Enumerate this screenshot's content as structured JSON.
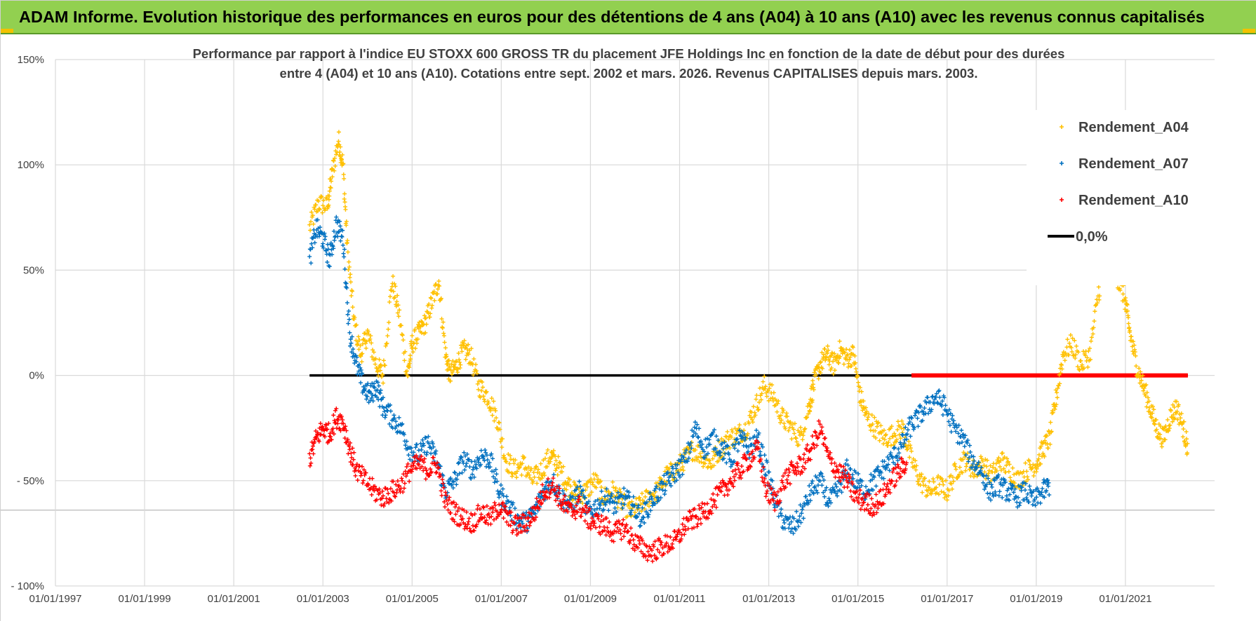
{
  "banner": {
    "title": "ADAM Informe. Evolution historique des performances en euros pour des détentions de 4 ans (A04) à 10 ans (A10) avec les revenus connus capitalisés"
  },
  "colors": {
    "banner_bg": "#92d050",
    "a04": "#ffc000",
    "a07": "#0070c0",
    "a10": "#ff0000",
    "zero": "#000000",
    "grid": "#d9d9d9",
    "text": "#404040"
  },
  "chart_data": {
    "type": "scatter",
    "title_lines": [
      "Performance par rapport à l'indice EU STOXX 600 GROSS TR  du placement JFE Holdings Inc en fonction de la date de début pour des durées",
      "entre 4 (A04) et 10 ans (A10). Cotations entre sept. 2002 et mars. 2026. Revenus CAPITALISES depuis mars. 2003."
    ],
    "xlabel": "",
    "ylabel": "",
    "x_range": [
      1997.0,
      2023.0
    ],
    "ylim": [
      -100,
      150
    ],
    "y_ticks": [
      {
        "value": 150,
        "label": "150%"
      },
      {
        "value": 100,
        "label": "100%"
      },
      {
        "value": 50,
        "label": "50%"
      },
      {
        "value": 0,
        "label": "0%"
      },
      {
        "value": -50,
        "label": "- 50%"
      },
      {
        "value": -100,
        "label": "- 100%"
      }
    ],
    "x_ticks": [
      {
        "value": 1997,
        "label": "01/01/1997"
      },
      {
        "value": 1999,
        "label": "01/01/1999"
      },
      {
        "value": 2001,
        "label": "01/01/2001"
      },
      {
        "value": 2003,
        "label": "01/01/2003"
      },
      {
        "value": 2005,
        "label": "01/01/2005"
      },
      {
        "value": 2007,
        "label": "01/01/2007"
      },
      {
        "value": 2009,
        "label": "01/01/2009"
      },
      {
        "value": 2011,
        "label": "01/01/2011"
      },
      {
        "value": 2013,
        "label": "01/01/2013"
      },
      {
        "value": 2015,
        "label": "01/01/2015"
      },
      {
        "value": 2017,
        "label": "01/01/2017"
      },
      {
        "value": 2019,
        "label": "01/01/2019"
      },
      {
        "value": 2021,
        "label": "01/01/2021"
      }
    ],
    "grid": true,
    "legend_position": "top-right",
    "series": [
      {
        "name": "Rendement_A04",
        "color": "#ffc000",
        "marker": "+",
        "points": [
          [
            2002.7,
            70
          ],
          [
            2002.9,
            82
          ],
          [
            2003.1,
            80
          ],
          [
            2003.2,
            95
          ],
          [
            2003.35,
            112
          ],
          [
            2003.45,
            100
          ],
          [
            2003.55,
            60
          ],
          [
            2003.7,
            25
          ],
          [
            2003.85,
            10
          ],
          [
            2004.0,
            20
          ],
          [
            2004.2,
            5
          ],
          [
            2004.35,
            0
          ],
          [
            2004.55,
            45
          ],
          [
            2004.7,
            30
          ],
          [
            2004.9,
            0
          ],
          [
            2005.0,
            15
          ],
          [
            2005.15,
            20
          ],
          [
            2005.3,
            25
          ],
          [
            2005.45,
            35
          ],
          [
            2005.6,
            45
          ],
          [
            2005.75,
            10
          ],
          [
            2005.85,
            0
          ],
          [
            2006.0,
            5
          ],
          [
            2006.15,
            12
          ],
          [
            2006.3,
            10
          ],
          [
            2006.5,
            -5
          ],
          [
            2006.7,
            -10
          ],
          [
            2006.9,
            -20
          ],
          [
            2007.1,
            -40
          ],
          [
            2007.3,
            -45
          ],
          [
            2007.5,
            -42
          ],
          [
            2007.7,
            -50
          ],
          [
            2007.9,
            -45
          ],
          [
            2008.1,
            -38
          ],
          [
            2008.25,
            -42
          ],
          [
            2008.45,
            -50
          ],
          [
            2008.6,
            -55
          ],
          [
            2008.75,
            -57
          ],
          [
            2008.9,
            -55
          ],
          [
            2009.1,
            -50
          ],
          [
            2009.3,
            -58
          ],
          [
            2009.5,
            -55
          ],
          [
            2009.7,
            -60
          ],
          [
            2009.9,
            -65
          ],
          [
            2010.1,
            -62
          ],
          [
            2010.3,
            -58
          ],
          [
            2010.5,
            -55
          ],
          [
            2010.7,
            -48
          ],
          [
            2010.9,
            -45
          ],
          [
            2011.1,
            -40
          ],
          [
            2011.3,
            -35
          ],
          [
            2011.5,
            -38
          ],
          [
            2011.7,
            -42
          ],
          [
            2011.9,
            -35
          ],
          [
            2012.1,
            -30
          ],
          [
            2012.3,
            -28
          ],
          [
            2012.5,
            -25
          ],
          [
            2012.7,
            -15
          ],
          [
            2012.9,
            -5
          ],
          [
            2013.1,
            -10
          ],
          [
            2013.3,
            -20
          ],
          [
            2013.5,
            -25
          ],
          [
            2013.7,
            -30
          ],
          [
            2013.9,
            -15
          ],
          [
            2014.0,
            -5
          ],
          [
            2014.15,
            5
          ],
          [
            2014.3,
            10
          ],
          [
            2014.45,
            5
          ],
          [
            2014.6,
            12
          ],
          [
            2014.75,
            8
          ],
          [
            2014.9,
            10
          ],
          [
            2015.05,
            -10
          ],
          [
            2015.2,
            -20
          ],
          [
            2015.4,
            -25
          ],
          [
            2015.6,
            -30
          ],
          [
            2015.8,
            -28
          ],
          [
            2016.0,
            -25
          ],
          [
            2016.2,
            -40
          ],
          [
            2016.4,
            -50
          ],
          [
            2016.6,
            -55
          ],
          [
            2016.8,
            -52
          ],
          [
            2017.0,
            -55
          ],
          [
            2017.2,
            -45
          ],
          [
            2017.4,
            -40
          ],
          [
            2017.6,
            -45
          ],
          [
            2017.8,
            -42
          ],
          [
            2018.0,
            -48
          ],
          [
            2018.2,
            -40
          ],
          [
            2018.4,
            -45
          ],
          [
            2018.6,
            -50
          ],
          [
            2018.8,
            -45
          ],
          [
            2019.0,
            -42
          ],
          [
            2019.15,
            -35
          ],
          [
            2019.3,
            -30
          ],
          [
            2019.45,
            -10
          ],
          [
            2019.6,
            10
          ],
          [
            2019.8,
            15
          ],
          [
            2020.0,
            5
          ],
          [
            2020.2,
            10
          ],
          [
            2020.4,
            40
          ],
          [
            2020.55,
            50
          ],
          [
            2020.7,
            55
          ],
          [
            2020.85,
            45
          ],
          [
            2021.0,
            35
          ],
          [
            2021.1,
            20
          ],
          [
            2021.25,
            5
          ],
          [
            2021.4,
            -5
          ],
          [
            2021.55,
            -15
          ],
          [
            2021.7,
            -25
          ],
          [
            2021.85,
            -30
          ],
          [
            2022.0,
            -20
          ],
          [
            2022.15,
            -15
          ],
          [
            2022.3,
            -25
          ],
          [
            2022.4,
            -35
          ]
        ]
      },
      {
        "name": "Rendement_A07",
        "color": "#0070c0",
        "marker": "+",
        "points": [
          [
            2002.7,
            55
          ],
          [
            2002.85,
            70
          ],
          [
            2003.0,
            65
          ],
          [
            2003.15,
            55
          ],
          [
            2003.3,
            72
          ],
          [
            2003.45,
            65
          ],
          [
            2003.6,
            20
          ],
          [
            2003.75,
            5
          ],
          [
            2003.9,
            -5
          ],
          [
            2004.05,
            -10
          ],
          [
            2004.2,
            -5
          ],
          [
            2004.35,
            -15
          ],
          [
            2004.55,
            -20
          ],
          [
            2004.75,
            -25
          ],
          [
            2004.95,
            -35
          ],
          [
            2005.15,
            -38
          ],
          [
            2005.35,
            -32
          ],
          [
            2005.55,
            -40
          ],
          [
            2005.75,
            -55
          ],
          [
            2005.95,
            -50
          ],
          [
            2006.15,
            -40
          ],
          [
            2006.35,
            -45
          ],
          [
            2006.55,
            -38
          ],
          [
            2006.75,
            -40
          ],
          [
            2006.95,
            -55
          ],
          [
            2007.15,
            -62
          ],
          [
            2007.35,
            -68
          ],
          [
            2007.55,
            -70
          ],
          [
            2007.75,
            -65
          ],
          [
            2007.95,
            -55
          ],
          [
            2008.15,
            -50
          ],
          [
            2008.35,
            -58
          ],
          [
            2008.55,
            -62
          ],
          [
            2008.75,
            -55
          ],
          [
            2008.95,
            -65
          ],
          [
            2009.15,
            -62
          ],
          [
            2009.35,
            -58
          ],
          [
            2009.55,
            -62
          ],
          [
            2009.75,
            -58
          ],
          [
            2009.95,
            -62
          ],
          [
            2010.15,
            -68
          ],
          [
            2010.35,
            -60
          ],
          [
            2010.55,
            -55
          ],
          [
            2010.75,
            -50
          ],
          [
            2010.95,
            -45
          ],
          [
            2011.15,
            -40
          ],
          [
            2011.35,
            -25
          ],
          [
            2011.55,
            -35
          ],
          [
            2011.75,
            -30
          ],
          [
            2011.95,
            -35
          ],
          [
            2012.15,
            -40
          ],
          [
            2012.35,
            -30
          ],
          [
            2012.55,
            -35
          ],
          [
            2012.75,
            -30
          ],
          [
            2012.95,
            -45
          ],
          [
            2013.15,
            -60
          ],
          [
            2013.35,
            -70
          ],
          [
            2013.55,
            -72
          ],
          [
            2013.75,
            -65
          ],
          [
            2013.95,
            -55
          ],
          [
            2014.15,
            -50
          ],
          [
            2014.35,
            -60
          ],
          [
            2014.55,
            -55
          ],
          [
            2014.75,
            -45
          ],
          [
            2014.95,
            -50
          ],
          [
            2015.15,
            -55
          ],
          [
            2015.35,
            -50
          ],
          [
            2015.55,
            -45
          ],
          [
            2015.75,
            -40
          ],
          [
            2015.95,
            -35
          ],
          [
            2016.15,
            -25
          ],
          [
            2016.35,
            -20
          ],
          [
            2016.55,
            -15
          ],
          [
            2016.75,
            -10
          ],
          [
            2016.95,
            -15
          ],
          [
            2017.15,
            -25
          ],
          [
            2017.35,
            -30
          ],
          [
            2017.55,
            -40
          ],
          [
            2017.75,
            -45
          ],
          [
            2017.95,
            -55
          ],
          [
            2018.15,
            -52
          ],
          [
            2018.35,
            -55
          ],
          [
            2018.55,
            -58
          ],
          [
            2018.75,
            -55
          ],
          [
            2018.95,
            -60
          ],
          [
            2019.15,
            -55
          ],
          [
            2019.3,
            -52
          ]
        ]
      },
      {
        "name": "Rendement_A10",
        "color": "#ff0000",
        "marker": "+",
        "points": [
          [
            2002.7,
            -40
          ],
          [
            2002.85,
            -30
          ],
          [
            2003.0,
            -25
          ],
          [
            2003.15,
            -28
          ],
          [
            2003.3,
            -20
          ],
          [
            2003.45,
            -22
          ],
          [
            2003.6,
            -35
          ],
          [
            2003.75,
            -45
          ],
          [
            2003.95,
            -50
          ],
          [
            2004.15,
            -55
          ],
          [
            2004.35,
            -58
          ],
          [
            2004.55,
            -55
          ],
          [
            2004.75,
            -52
          ],
          [
            2004.95,
            -45
          ],
          [
            2005.15,
            -42
          ],
          [
            2005.35,
            -45
          ],
          [
            2005.55,
            -42
          ],
          [
            2005.75,
            -60
          ],
          [
            2005.95,
            -65
          ],
          [
            2006.15,
            -68
          ],
          [
            2006.35,
            -70
          ],
          [
            2006.55,
            -65
          ],
          [
            2006.75,
            -68
          ],
          [
            2006.95,
            -62
          ],
          [
            2007.15,
            -68
          ],
          [
            2007.35,
            -72
          ],
          [
            2007.55,
            -70
          ],
          [
            2007.75,
            -65
          ],
          [
            2007.95,
            -55
          ],
          [
            2008.15,
            -52
          ],
          [
            2008.35,
            -60
          ],
          [
            2008.55,
            -65
          ],
          [
            2008.75,
            -62
          ],
          [
            2008.95,
            -68
          ],
          [
            2009.15,
            -70
          ],
          [
            2009.35,
            -72
          ],
          [
            2009.55,
            -75
          ],
          [
            2009.75,
            -72
          ],
          [
            2009.95,
            -78
          ],
          [
            2010.15,
            -82
          ],
          [
            2010.35,
            -84
          ],
          [
            2010.55,
            -82
          ],
          [
            2010.75,
            -80
          ],
          [
            2010.95,
            -78
          ],
          [
            2011.15,
            -70
          ],
          [
            2011.35,
            -68
          ],
          [
            2011.55,
            -65
          ],
          [
            2011.75,
            -60
          ],
          [
            2011.95,
            -55
          ],
          [
            2012.15,
            -50
          ],
          [
            2012.35,
            -45
          ],
          [
            2012.55,
            -40
          ],
          [
            2012.75,
            -35
          ],
          [
            2012.95,
            -55
          ],
          [
            2013.15,
            -60
          ],
          [
            2013.35,
            -50
          ],
          [
            2013.55,
            -45
          ],
          [
            2013.75,
            -42
          ],
          [
            2013.95,
            -35
          ],
          [
            2014.15,
            -25
          ],
          [
            2014.35,
            -40
          ],
          [
            2014.55,
            -45
          ],
          [
            2014.75,
            -50
          ],
          [
            2014.95,
            -58
          ],
          [
            2015.15,
            -60
          ],
          [
            2015.35,
            -62
          ],
          [
            2015.55,
            -58
          ],
          [
            2015.75,
            -50
          ],
          [
            2015.95,
            -45
          ],
          [
            2016.1,
            -40
          ]
        ]
      },
      {
        "name": "0,0%",
        "color": "#000000",
        "marker": "line",
        "points": [
          [
            2002.7,
            0
          ],
          [
            2022.4,
            0
          ]
        ]
      }
    ],
    "extra_red_zero_band": {
      "x_start": 2016.2,
      "x_end": 2022.4,
      "value": 0
    }
  }
}
